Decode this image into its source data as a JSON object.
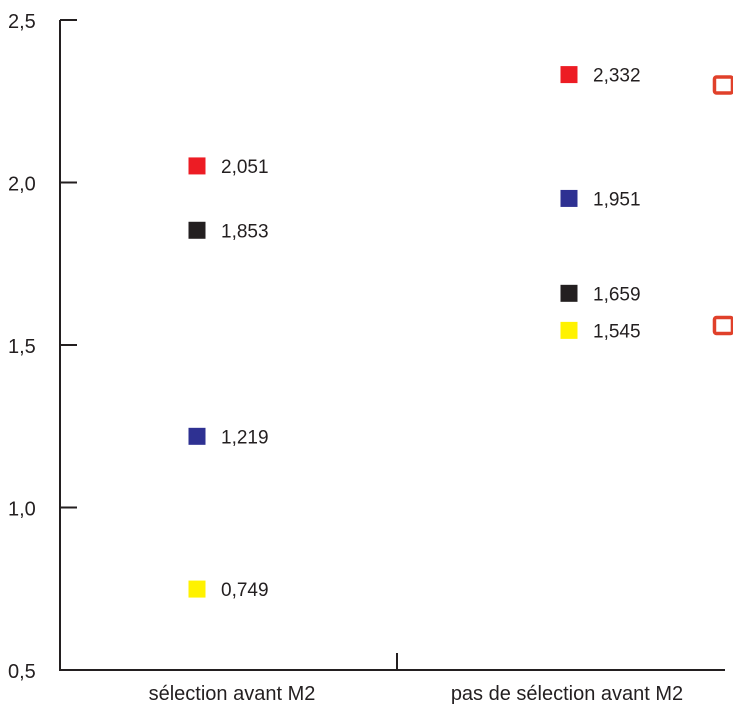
{
  "chart_data": {
    "type": "scatter",
    "title": "",
    "xlabel": "",
    "ylabel": "",
    "ylim": [
      0.5,
      2.5
    ],
    "y_ticks": [
      0.5,
      1.0,
      1.5,
      2.0,
      2.5
    ],
    "y_tick_labels": [
      "0,5",
      "1,0",
      "1,5",
      "2,0",
      "2,5"
    ],
    "categories": [
      "sélection avant M2",
      "pas de sélection avant M2"
    ],
    "grid": false,
    "legend": "none",
    "points": [
      {
        "category": 0,
        "y": 2.051,
        "label": "2,051",
        "color": "#ed1c24",
        "filled": true
      },
      {
        "category": 0,
        "y": 1.853,
        "label": "1,853",
        "color": "#231f20",
        "filled": true
      },
      {
        "category": 0,
        "y": 1.219,
        "label": "1,219",
        "color": "#2e3192",
        "filled": true
      },
      {
        "category": 0,
        "y": 0.749,
        "label": "0,749",
        "color": "#fff200",
        "filled": true
      },
      {
        "category": 1,
        "y": 2.332,
        "label": "2,332",
        "color": "#ed1c24",
        "filled": true
      },
      {
        "category": 1,
        "y": 1.951,
        "label": "1,951",
        "color": "#2e3192",
        "filled": true
      },
      {
        "category": 1,
        "y": 1.659,
        "label": "1,659",
        "color": "#231f20",
        "filled": true
      },
      {
        "category": 1,
        "y": 1.545,
        "label": "1,545",
        "color": "#fff200",
        "filled": true
      },
      {
        "category": 1.55,
        "y": 2.3,
        "label": "",
        "color": "#e0402a",
        "filled": false
      },
      {
        "category": 1.55,
        "y": 1.56,
        "label": "",
        "color": "#e0402a",
        "filled": false
      }
    ]
  }
}
